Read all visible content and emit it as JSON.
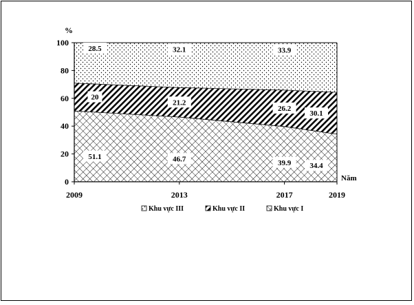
{
  "chart_data": {
    "type": "area",
    "stacked": true,
    "normalized": true,
    "x": [
      2009,
      2013,
      2017,
      2019
    ],
    "ylim": [
      0,
      100
    ],
    "yticks": [
      0,
      20,
      40,
      60,
      80,
      100
    ],
    "ylabel": "%",
    "xlabel": "Năm",
    "grid": false,
    "legend_position": "bottom",
    "series": [
      {
        "name": "Khu vực I",
        "values": [
          51.1,
          46.7,
          39.9,
          34.4
        ],
        "pattern": "crosshatch"
      },
      {
        "name": "Khu vực II",
        "values": [
          20,
          21.2,
          26.2,
          30.1
        ],
        "pattern": "diagonal-hatch"
      },
      {
        "name": "Khu vực III",
        "values": [
          28.5,
          32.1,
          33.9,
          35.5
        ],
        "pattern": "dots"
      }
    ],
    "annotations": [
      {
        "series": "Khu vực I",
        "x": 2009,
        "text": "51.1"
      },
      {
        "series": "Khu vực I",
        "x": 2013,
        "text": "46.7"
      },
      {
        "series": "Khu vực I",
        "x": 2017,
        "text": "39.9"
      },
      {
        "series": "Khu vực I",
        "x": 2019,
        "text": "34.4"
      },
      {
        "series": "Khu vực II",
        "x": 2009,
        "text": "20"
      },
      {
        "series": "Khu vực II",
        "x": 2013,
        "text": "21.2"
      },
      {
        "series": "Khu vực II",
        "x": 2017,
        "text": "26.2"
      },
      {
        "series": "Khu vực II",
        "x": 2019,
        "text": "30.1"
      },
      {
        "series": "Khu vực III",
        "x": 2009,
        "text": "28.5"
      },
      {
        "series": "Khu vực III",
        "x": 2013,
        "text": "32.1"
      },
      {
        "series": "Khu vực III",
        "x": 2017,
        "text": "33.9"
      }
    ],
    "legend": [
      "Khu vực III",
      "Khu vực II",
      "Khu vực I"
    ]
  }
}
